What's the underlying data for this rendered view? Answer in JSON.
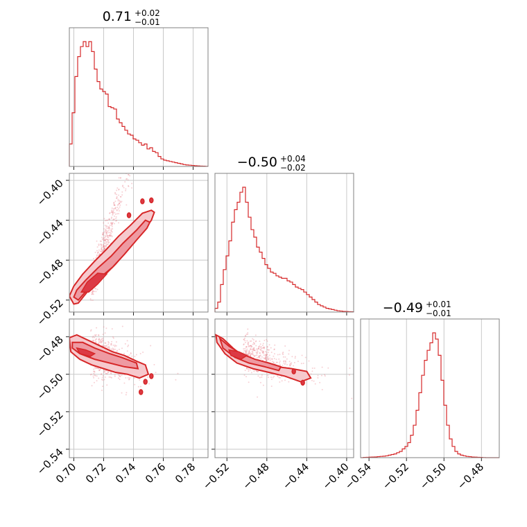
{
  "chart_data": {
    "type": "corner",
    "colors": {
      "series": "#d62728",
      "frame": "#808080",
      "grid": "#c8c8c8"
    },
    "grid": true,
    "params": [
      {
        "title_main": "0.71",
        "title_up": "+0.02",
        "title_down": "−0.01",
        "range": [
          0.697,
          0.79
        ],
        "ticks": [
          0.7,
          0.72,
          0.74,
          0.76,
          0.78
        ],
        "tick_labels": [
          "0.70",
          "0.72",
          "0.74",
          "0.76",
          "0.78"
        ]
      },
      {
        "title_main": "−0.50",
        "title_up": "+0.04",
        "title_down": "−0.02",
        "range": [
          -0.532,
          -0.393
        ],
        "ticks": [
          -0.52,
          -0.48,
          -0.44,
          -0.4
        ],
        "tick_labels": [
          "−0.52",
          "−0.48",
          "−0.44",
          "−0.40"
        ]
      },
      {
        "title_main": "−0.49",
        "title_up": "+0.01",
        "title_down": "−0.01",
        "range": [
          -0.5445,
          -0.4705
        ],
        "ticks": [
          -0.54,
          -0.52,
          -0.5,
          -0.48
        ],
        "tick_labels": [
          "−0.54",
          "−0.52",
          "−0.50",
          "−0.48"
        ]
      }
    ],
    "histograms": [
      {
        "param": 0,
        "edges": [
          0.697,
          0.79
        ],
        "counts": [
          0.18,
          0.43,
          0.72,
          0.88,
          0.96,
          1.0,
          0.96,
          1.0,
          0.92,
          0.78,
          0.68,
          0.62,
          0.6,
          0.58,
          0.48,
          0.47,
          0.46,
          0.38,
          0.35,
          0.32,
          0.29,
          0.26,
          0.25,
          0.22,
          0.21,
          0.19,
          0.17,
          0.18,
          0.14,
          0.15,
          0.12,
          0.11,
          0.08,
          0.06,
          0.05,
          0.045,
          0.04,
          0.035,
          0.03,
          0.025,
          0.02,
          0.015,
          0.012,
          0.01,
          0.008,
          0.006,
          0.004,
          0.003,
          0.002,
          0.001
        ]
      },
      {
        "param": 1,
        "edges": [
          -0.532,
          -0.393
        ],
        "counts": [
          0.03,
          0.08,
          0.22,
          0.34,
          0.45,
          0.57,
          0.72,
          0.82,
          0.88,
          0.96,
          1.0,
          0.88,
          0.76,
          0.66,
          0.6,
          0.52,
          0.48,
          0.43,
          0.38,
          0.35,
          0.32,
          0.31,
          0.29,
          0.28,
          0.27,
          0.27,
          0.25,
          0.24,
          0.22,
          0.2,
          0.19,
          0.18,
          0.16,
          0.14,
          0.12,
          0.1,
          0.08,
          0.06,
          0.05,
          0.04,
          0.03,
          0.025,
          0.02,
          0.015,
          0.01,
          0.008,
          0.005,
          0.004,
          0.003,
          0.002
        ]
      },
      {
        "param": 2,
        "edges": [
          -0.5445,
          -0.4705
        ],
        "counts": [
          0,
          0.002,
          0.003,
          0.004,
          0.005,
          0.006,
          0.008,
          0.01,
          0.012,
          0.015,
          0.02,
          0.025,
          0.03,
          0.04,
          0.05,
          0.07,
          0.09,
          0.12,
          0.18,
          0.26,
          0.38,
          0.52,
          0.66,
          0.78,
          0.86,
          0.92,
          1.0,
          0.95,
          0.82,
          0.62,
          0.42,
          0.26,
          0.15,
          0.09,
          0.05,
          0.03,
          0.02,
          0.015,
          0.01,
          0.008,
          0.005,
          0.004,
          0.003,
          0.002,
          0.001,
          0,
          0,
          0,
          0,
          0
        ]
      }
    ],
    "joint": [
      {
        "x_param": 0,
        "y_param": 1,
        "levels": [
          [
            [
              0.697,
              -0.516
            ],
            [
              0.7,
              -0.524
            ],
            [
              0.703,
              -0.523
            ],
            [
              0.71,
              -0.51
            ],
            [
              0.72,
              -0.496
            ],
            [
              0.728,
              -0.484
            ],
            [
              0.736,
              -0.47
            ],
            [
              0.742,
              -0.458
            ],
            [
              0.748,
              -0.448
            ],
            [
              0.752,
              -0.44
            ],
            [
              0.754,
              -0.432
            ],
            [
              0.752,
              -0.43
            ],
            [
              0.746,
              -0.433
            ],
            [
              0.738,
              -0.445
            ],
            [
              0.73,
              -0.456
            ],
            [
              0.722,
              -0.469
            ],
            [
              0.714,
              -0.481
            ],
            [
              0.706,
              -0.494
            ],
            [
              0.7,
              -0.506
            ]
          ],
          [
            [
              0.7,
              -0.517
            ],
            [
              0.703,
              -0.52
            ],
            [
              0.71,
              -0.508
            ],
            [
              0.718,
              -0.497
            ],
            [
              0.726,
              -0.487
            ],
            [
              0.734,
              -0.474
            ],
            [
              0.742,
              -0.46
            ],
            [
              0.749,
              -0.448
            ],
            [
              0.751,
              -0.442
            ],
            [
              0.748,
              -0.44
            ],
            [
              0.742,
              -0.45
            ],
            [
              0.733,
              -0.463
            ],
            [
              0.725,
              -0.476
            ],
            [
              0.716,
              -0.488
            ],
            [
              0.708,
              -0.5
            ],
            [
              0.702,
              -0.51
            ]
          ],
          [
            [
              0.705,
              -0.512
            ],
            [
              0.71,
              -0.512
            ],
            [
              0.716,
              -0.504
            ],
            [
              0.722,
              -0.494
            ],
            [
              0.716,
              -0.493
            ],
            [
              0.709,
              -0.502
            ]
          ]
        ]
      },
      {
        "x_param": 0,
        "y_param": 2,
        "levels": [
          [
            [
              0.697,
              -0.4805
            ],
            [
              0.702,
              -0.479
            ],
            [
              0.71,
              -0.482
            ],
            [
              0.718,
              -0.485
            ],
            [
              0.726,
              -0.488
            ],
            [
              0.734,
              -0.49
            ],
            [
              0.742,
              -0.493
            ],
            [
              0.748,
              -0.495
            ],
            [
              0.75,
              -0.5
            ],
            [
              0.744,
              -0.502
            ],
            [
              0.736,
              -0.5
            ],
            [
              0.728,
              -0.499
            ],
            [
              0.72,
              -0.497
            ],
            [
              0.712,
              -0.495
            ],
            [
              0.704,
              -0.492
            ],
            [
              0.698,
              -0.488
            ]
          ],
          [
            [
              0.699,
              -0.483
            ],
            [
              0.706,
              -0.483
            ],
            [
              0.714,
              -0.486
            ],
            [
              0.724,
              -0.489
            ],
            [
              0.732,
              -0.491
            ],
            [
              0.742,
              -0.494
            ],
            [
              0.743,
              -0.497
            ],
            [
              0.734,
              -0.496
            ],
            [
              0.724,
              -0.494
            ],
            [
              0.714,
              -0.492
            ],
            [
              0.704,
              -0.489
            ],
            [
              0.699,
              -0.486
            ]
          ],
          [
            [
              0.702,
              -0.486
            ],
            [
              0.708,
              -0.487
            ],
            [
              0.714,
              -0.489
            ],
            [
              0.711,
              -0.4905
            ],
            [
              0.704,
              -0.489
            ]
          ]
        ]
      },
      {
        "x_param": 1,
        "y_param": 2,
        "levels": [
          [
            [
              -0.531,
              -0.479
            ],
            [
              -0.524,
              -0.481
            ],
            [
              -0.514,
              -0.486
            ],
            [
              -0.5,
              -0.492
            ],
            [
              -0.486,
              -0.494
            ],
            [
              -0.47,
              -0.496
            ],
            [
              -0.455,
              -0.497
            ],
            [
              -0.44,
              -0.4985
            ],
            [
              -0.436,
              -0.502
            ],
            [
              -0.446,
              -0.504
            ],
            [
              -0.462,
              -0.501
            ],
            [
              -0.478,
              -0.499
            ],
            [
              -0.494,
              -0.497
            ],
            [
              -0.51,
              -0.494
            ],
            [
              -0.522,
              -0.489
            ],
            [
              -0.53,
              -0.483
            ]
          ],
          [
            [
              -0.527,
              -0.481
            ],
            [
              -0.518,
              -0.485
            ],
            [
              -0.506,
              -0.489
            ],
            [
              -0.492,
              -0.492
            ],
            [
              -0.478,
              -0.494
            ],
            [
              -0.466,
              -0.496
            ],
            [
              -0.468,
              -0.498
            ],
            [
              -0.482,
              -0.496
            ],
            [
              -0.498,
              -0.494
            ],
            [
              -0.512,
              -0.491
            ],
            [
              -0.524,
              -0.486
            ]
          ],
          [
            [
              -0.518,
              -0.487
            ],
            [
              -0.508,
              -0.488
            ],
            [
              -0.5,
              -0.49
            ],
            [
              -0.506,
              -0.492
            ],
            [
              -0.516,
              -0.49
            ]
          ]
        ]
      }
    ],
    "markers": [
      {
        "panel": 0,
        "points": [
          [
            0.746,
            -0.421
          ],
          [
            0.752,
            -0.42
          ],
          [
            0.737,
            -0.435
          ]
        ]
      },
      {
        "panel": 1,
        "points": [
          [
            0.752,
            -0.501
          ],
          [
            0.745,
            -0.5095
          ],
          [
            0.748,
            -0.504
          ]
        ]
      },
      {
        "panel": 2,
        "points": [
          [
            -0.444,
            -0.5045
          ],
          [
            -0.453,
            -0.4985
          ]
        ]
      }
    ]
  }
}
